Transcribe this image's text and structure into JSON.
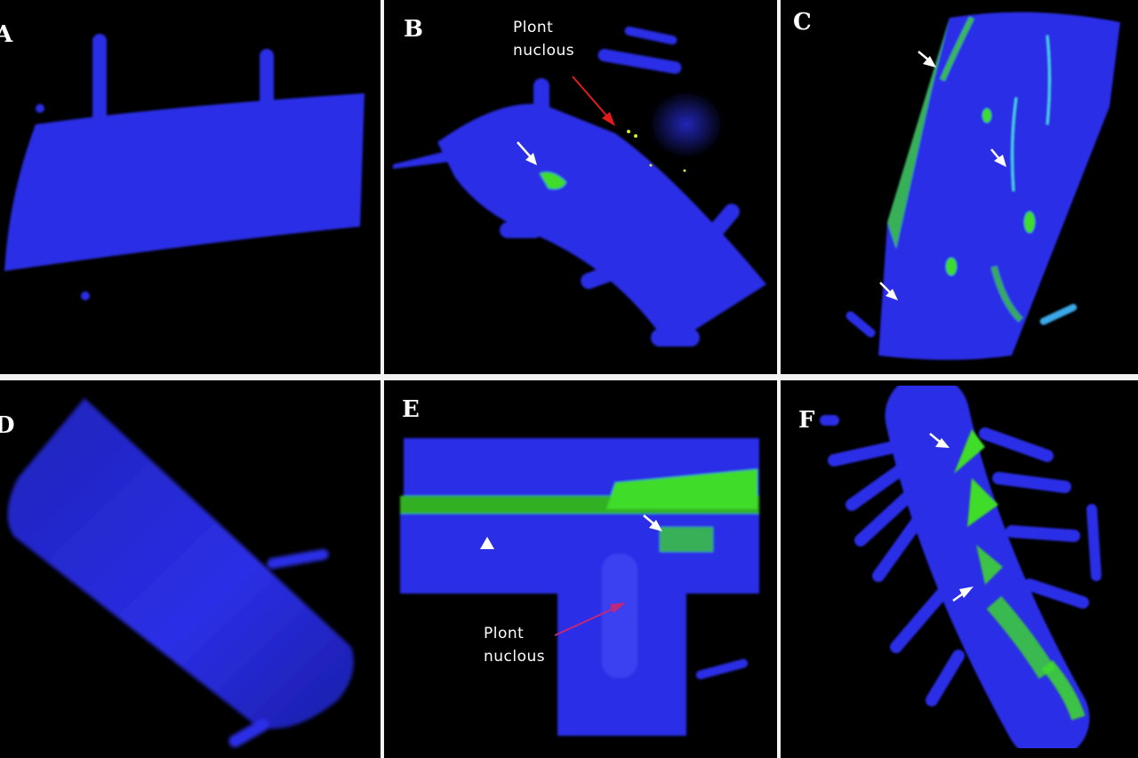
{
  "figure": {
    "panels": [
      {
        "label": "A",
        "view": "root segment stained blue, no green signal"
      },
      {
        "label": "B",
        "view": "root segment with small green cluster",
        "annotation_line1": "Plont",
        "annotation_line2": "nuclous"
      },
      {
        "label": "C",
        "view": "root segment with green signal along surface"
      },
      {
        "label": "D",
        "view": "root segment stained blue, no green signal"
      },
      {
        "label": "E",
        "view": "branched root with green band",
        "annotation_line1": "Plont",
        "annotation_line2": "nuclous"
      },
      {
        "label": "F",
        "view": "root with many hairs and green patches"
      }
    ]
  },
  "colors": {
    "background": "#000000",
    "root_stain": "#2a2be8",
    "fungal_signal": "#3fdc2a",
    "arrow_white": "#ffffff",
    "arrow_red_B": "#e21b1b",
    "arrow_magenta_E": "#c0287a"
  },
  "icons": [
    "white-arrowhead-icon",
    "red-arrow-icon",
    "magenta-arrow-icon"
  ]
}
